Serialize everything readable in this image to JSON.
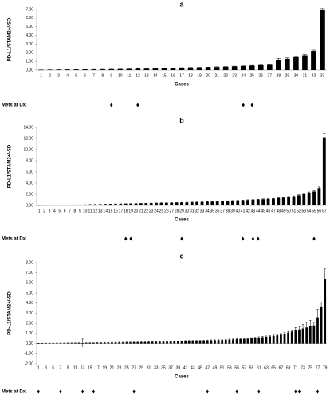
{
  "chart_data": [
    {
      "type": "bar",
      "title": "a",
      "y_label": "PD-L1/STAM2+/-SD",
      "x_label": "Cases",
      "color": "#000000",
      "categories": [
        "1",
        "2",
        "3",
        "4",
        "5",
        "6",
        "7",
        "8",
        "9",
        "10",
        "11",
        "12",
        "13",
        "14",
        "15",
        "16",
        "17",
        "18",
        "19",
        "20",
        "21",
        "22",
        "23",
        "24",
        "25",
        "26",
        "27",
        "28",
        "29",
        "30",
        "31",
        "32",
        "33"
      ],
      "values": [
        0.02,
        0.03,
        0.04,
        0.05,
        0.05,
        0.06,
        0.07,
        0.08,
        0.09,
        0.1,
        0.12,
        0.14,
        0.16,
        0.18,
        0.2,
        0.22,
        0.25,
        0.28,
        0.3,
        0.32,
        0.35,
        0.38,
        0.42,
        0.46,
        0.5,
        0.55,
        0.6,
        1.2,
        1.3,
        1.5,
        1.7,
        2.2,
        7.0
      ],
      "errors": [
        0.01,
        0.01,
        0.01,
        0.01,
        0.01,
        0.01,
        0.01,
        0.01,
        0.01,
        0.01,
        0.02,
        0.02,
        0.02,
        0.02,
        0.02,
        0.02,
        0.02,
        0.02,
        0.02,
        0.02,
        0.03,
        0.03,
        0.03,
        0.03,
        0.04,
        0.04,
        0.05,
        0.15,
        0.1,
        0.1,
        0.1,
        0.1,
        0.1
      ],
      "ylim": [
        0,
        7
      ],
      "yticks": [
        {
          "value": 0,
          "label": "0.00"
        },
        {
          "value": 1,
          "label": "1.00"
        },
        {
          "value": 2,
          "label": "2.00"
        },
        {
          "value": 3,
          "label": "3.00"
        },
        {
          "value": 4,
          "label": "4.00"
        },
        {
          "value": 5,
          "label": "5.00"
        },
        {
          "value": 6,
          "label": "6.00"
        },
        {
          "value": 7,
          "label": "7.00"
        }
      ],
      "mets_at_dx": {
        "label": "Mets at Dx.",
        "cases": [
          9,
          12,
          24,
          25
        ]
      }
    },
    {
      "type": "bar",
      "title": "b",
      "y_label": "PD-L1/STAM2+/-SD",
      "x_label": "Cases",
      "color": "#000000",
      "categories": [
        "1",
        "2",
        "3",
        "4",
        "5",
        "6",
        "7",
        "8",
        "9",
        "10",
        "11",
        "12",
        "13",
        "14",
        "15",
        "16",
        "17",
        "18",
        "19",
        "20",
        "21",
        "22",
        "23",
        "24",
        "25",
        "26",
        "27",
        "28",
        "29",
        "30",
        "31",
        "32",
        "33",
        "34",
        "35",
        "36",
        "37",
        "38",
        "39",
        "40",
        "41",
        "42",
        "43",
        "44",
        "45",
        "46",
        "47",
        "48",
        "49",
        "50",
        "51",
        "52",
        "53",
        "54",
        "55",
        "56",
        "57"
      ],
      "values": [
        0.02,
        0.03,
        0.04,
        0.05,
        0.06,
        0.07,
        0.08,
        0.09,
        0.1,
        0.12,
        0.14,
        0.16,
        0.18,
        0.2,
        0.22,
        0.24,
        0.26,
        0.28,
        0.3,
        0.32,
        0.34,
        0.36,
        0.38,
        0.4,
        0.42,
        0.44,
        0.46,
        0.48,
        0.5,
        0.52,
        0.55,
        0.58,
        0.6,
        0.63,
        0.66,
        0.7,
        0.74,
        0.78,
        0.82,
        0.86,
        0.9,
        0.95,
        1.0,
        1.05,
        1.1,
        1.15,
        1.2,
        1.3,
        1.4,
        1.5,
        1.6,
        1.8,
        2.0,
        2.3,
        2.5,
        3.1,
        12.2
      ],
      "errors": [
        0.02,
        0.02,
        0.02,
        0.02,
        0.02,
        0.02,
        0.02,
        0.02,
        0.02,
        0.02,
        0.03,
        0.03,
        0.03,
        0.03,
        0.03,
        0.03,
        0.03,
        0.03,
        0.03,
        0.03,
        0.04,
        0.04,
        0.04,
        0.04,
        0.04,
        0.04,
        0.04,
        0.04,
        0.04,
        0.04,
        0.05,
        0.05,
        0.05,
        0.05,
        0.05,
        0.05,
        0.05,
        0.05,
        0.05,
        0.05,
        0.06,
        0.06,
        0.06,
        0.06,
        0.06,
        0.06,
        0.06,
        0.08,
        0.08,
        0.08,
        0.1,
        0.1,
        0.1,
        0.12,
        0.15,
        0.2,
        0.7
      ],
      "ylim": [
        0,
        14
      ],
      "yticks": [
        {
          "value": 0,
          "label": "0.00"
        },
        {
          "value": 2,
          "label": "2.00"
        },
        {
          "value": 4,
          "label": "4.00"
        },
        {
          "value": 6,
          "label": "6.00"
        },
        {
          "value": 8,
          "label": "8.00"
        },
        {
          "value": 10,
          "label": "10.00"
        },
        {
          "value": 12,
          "label": "12.00"
        },
        {
          "value": 14,
          "label": "14.00"
        }
      ],
      "mets_at_dx": {
        "label": "Mets at Dx.",
        "cases": [
          18,
          19,
          29,
          41,
          43,
          44,
          55
        ]
      }
    },
    {
      "type": "bar",
      "title": "c",
      "y_label": "PD-L1/STAM2+/-SD",
      "x_label": "Cases",
      "color": "#000000",
      "categories": [
        "1",
        null,
        "3",
        null,
        "5",
        null,
        "7",
        null,
        "9",
        null,
        "11",
        null,
        "13",
        null,
        "15",
        null,
        "17",
        null,
        "19",
        null,
        "21",
        null,
        "23",
        null,
        "25",
        null,
        "27",
        null,
        "29",
        null,
        "31",
        null,
        "33",
        null,
        "35",
        null,
        "37",
        null,
        "39",
        null,
        "41",
        null,
        "43",
        null,
        "45",
        null,
        "47",
        null,
        "49",
        null,
        "51",
        null,
        "53",
        null,
        "55",
        null,
        "57",
        null,
        "59",
        null,
        "61",
        null,
        "63",
        null,
        "65",
        null,
        "67",
        null,
        "69",
        null,
        "71",
        null,
        "73",
        null,
        "75",
        null,
        "77",
        null,
        "79"
      ],
      "values": [
        0.01,
        0.01,
        0.02,
        0.02,
        0.02,
        0.03,
        0.03,
        0.03,
        0.04,
        0.04,
        0.04,
        0.05,
        0.05,
        0.05,
        0.06,
        0.06,
        0.07,
        0.07,
        0.08,
        0.08,
        0.09,
        0.09,
        0.1,
        0.1,
        0.11,
        0.11,
        0.12,
        0.12,
        0.13,
        0.13,
        0.14,
        0.15,
        0.16,
        0.17,
        0.18,
        0.19,
        0.2,
        0.21,
        0.22,
        0.23,
        0.24,
        0.25,
        0.26,
        0.27,
        0.28,
        0.29,
        0.3,
        0.31,
        0.32,
        0.33,
        0.35,
        0.37,
        0.39,
        0.41,
        0.43,
        0.45,
        0.47,
        0.5,
        0.53,
        0.56,
        0.6,
        0.64,
        0.68,
        0.72,
        0.77,
        0.82,
        0.9,
        1.0,
        1.1,
        1.2,
        1.3,
        1.4,
        1.5,
        1.6,
        1.7,
        1.8,
        2.6,
        3.6,
        6.4
      ],
      "errors": [
        0.02,
        0.02,
        0.02,
        0.02,
        0.02,
        0.02,
        0.02,
        0.02,
        0.02,
        0.02,
        0.02,
        0.02,
        0.4,
        0.02,
        0.02,
        0.02,
        0.02,
        0.02,
        0.02,
        0.02,
        0.03,
        0.03,
        0.03,
        0.03,
        0.03,
        0.03,
        0.03,
        0.03,
        0.03,
        0.03,
        0.04,
        0.04,
        0.04,
        0.04,
        0.04,
        0.04,
        0.04,
        0.04,
        0.04,
        0.04,
        0.05,
        0.05,
        0.05,
        0.05,
        0.05,
        0.05,
        0.05,
        0.05,
        0.05,
        0.05,
        0.06,
        0.06,
        0.06,
        0.06,
        0.06,
        0.06,
        0.06,
        0.06,
        0.06,
        0.06,
        0.08,
        0.08,
        0.08,
        0.08,
        0.08,
        0.08,
        0.1,
        0.1,
        0.1,
        0.1,
        0.3,
        0.3,
        0.4,
        0.5,
        0.6,
        0.3,
        0.8,
        0.5,
        1.0
      ],
      "ylim": [
        -2,
        8
      ],
      "yticks": [
        {
          "value": -2,
          "label": "-2.00"
        },
        {
          "value": -1,
          "label": "-1.00"
        },
        {
          "value": 0,
          "label": "0.00"
        },
        {
          "value": 1,
          "label": "1.00"
        },
        {
          "value": 2,
          "label": "2.00"
        },
        {
          "value": 3,
          "label": "3.00"
        },
        {
          "value": 4,
          "label": "4.00"
        },
        {
          "value": 5,
          "label": "5.00"
        },
        {
          "value": 6,
          "label": "6.00"
        },
        {
          "value": 7,
          "label": "7.00"
        },
        {
          "value": 8,
          "label": "8.00"
        }
      ],
      "mets_at_dx": {
        "label": "Mets at Dx.",
        "cases": [
          1,
          7,
          13,
          16,
          27,
          47,
          55,
          61,
          71,
          72,
          77
        ]
      }
    }
  ]
}
